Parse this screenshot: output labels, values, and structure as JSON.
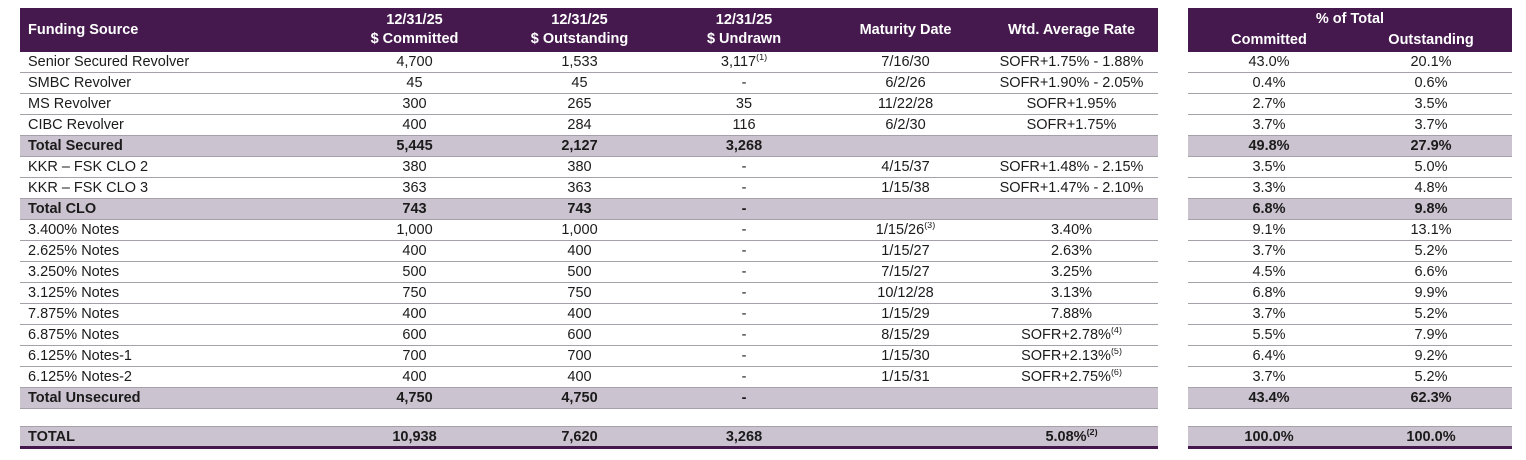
{
  "colors": {
    "header_bg": "#45194E",
    "header_text": "#FFFFFF",
    "band_bg": "#CBC3CF",
    "row_border": "#A6A1A8",
    "total_border": "#45194E",
    "text": "#1B1B1B"
  },
  "left_table": {
    "header": {
      "funding_source": "Funding Source",
      "committed_line1": "12/31/25",
      "committed_line2": "$ Committed",
      "outstanding_line1": "12/31/25",
      "outstanding_line2": "$ Outstanding",
      "undrawn_line1": "12/31/25",
      "undrawn_line2": "$ Undrawn",
      "maturity": "Maturity Date",
      "rate": "Wtd. Average Rate"
    }
  },
  "right_table": {
    "header": {
      "title": "% of Total",
      "committed": "Committed",
      "outstanding": "Outstanding"
    }
  },
  "rows": [
    {
      "type": "normal",
      "source": "Senior Secured Revolver",
      "committed": "4,700",
      "outstanding": "1,533",
      "undrawn": "3,117",
      "undrawn_sup": "(1)",
      "maturity": "7/16/30",
      "rate": "SOFR+1.75% - 1.88%",
      "pct_committed": "43.0%",
      "pct_outstanding": "20.1%"
    },
    {
      "type": "normal",
      "source": "SMBC Revolver",
      "committed": "45",
      "outstanding": "45",
      "undrawn": "-",
      "maturity": "6/2/26",
      "rate": "SOFR+1.90% - 2.05%",
      "pct_committed": "0.4%",
      "pct_outstanding": "0.6%"
    },
    {
      "type": "normal",
      "source": "MS Revolver",
      "committed": "300",
      "outstanding": "265",
      "undrawn": "35",
      "maturity": "11/22/28",
      "rate": "SOFR+1.95%",
      "pct_committed": "2.7%",
      "pct_outstanding": "3.5%"
    },
    {
      "type": "normal",
      "source": "CIBC Revolver",
      "committed": "400",
      "outstanding": "284",
      "undrawn": "116",
      "maturity": "6/2/30",
      "rate": "SOFR+1.75%",
      "pct_committed": "3.7%",
      "pct_outstanding": "3.7%"
    },
    {
      "type": "subtotal",
      "source": "Total Secured",
      "committed": "5,445",
      "outstanding": "2,127",
      "undrawn": "3,268",
      "maturity": "",
      "rate": "",
      "pct_committed": "49.8%",
      "pct_outstanding": "27.9%"
    },
    {
      "type": "normal",
      "source": "KKR – FSK CLO 2",
      "committed": "380",
      "outstanding": "380",
      "undrawn": "-",
      "maturity": "4/15/37",
      "rate": "SOFR+1.48% - 2.15%",
      "pct_committed": "3.5%",
      "pct_outstanding": "5.0%"
    },
    {
      "type": "normal",
      "source": "KKR – FSK CLO 3",
      "committed": "363",
      "outstanding": "363",
      "undrawn": "-",
      "maturity": "1/15/38",
      "rate": "SOFR+1.47% - 2.10%",
      "pct_committed": "3.3%",
      "pct_outstanding": "4.8%"
    },
    {
      "type": "subtotal",
      "source": "Total CLO",
      "committed": "743",
      "outstanding": "743",
      "undrawn": "-",
      "maturity": "",
      "rate": "",
      "pct_committed": "6.8%",
      "pct_outstanding": "9.8%"
    },
    {
      "type": "normal",
      "source": "3.400% Notes",
      "committed": "1,000",
      "outstanding": "1,000",
      "undrawn": "-",
      "maturity": "1/15/26",
      "maturity_sup": "(3)",
      "rate": "3.40%",
      "pct_committed": "9.1%",
      "pct_outstanding": "13.1%"
    },
    {
      "type": "normal",
      "source": "2.625% Notes",
      "committed": "400",
      "outstanding": "400",
      "undrawn": "-",
      "maturity": "1/15/27",
      "rate": "2.63%",
      "pct_committed": "3.7%",
      "pct_outstanding": "5.2%"
    },
    {
      "type": "normal",
      "source": "3.250% Notes",
      "committed": "500",
      "outstanding": "500",
      "undrawn": "-",
      "maturity": "7/15/27",
      "rate": "3.25%",
      "pct_committed": "4.5%",
      "pct_outstanding": "6.6%"
    },
    {
      "type": "normal",
      "source": "3.125% Notes",
      "committed": "750",
      "outstanding": "750",
      "undrawn": "-",
      "maturity": "10/12/28",
      "rate": "3.13%",
      "pct_committed": "6.8%",
      "pct_outstanding": "9.9%"
    },
    {
      "type": "normal",
      "source": "7.875% Notes",
      "committed": "400",
      "outstanding": "400",
      "undrawn": "-",
      "maturity": "1/15/29",
      "rate": "7.88%",
      "pct_committed": "3.7%",
      "pct_outstanding": "5.2%"
    },
    {
      "type": "normal",
      "source": "6.875% Notes",
      "committed": "600",
      "outstanding": "600",
      "undrawn": "-",
      "maturity": "8/15/29",
      "rate": "SOFR+2.78%",
      "rate_sup": "(4)",
      "pct_committed": "5.5%",
      "pct_outstanding": "7.9%"
    },
    {
      "type": "normal",
      "source": "6.125% Notes-1",
      "committed": "700",
      "outstanding": "700",
      "undrawn": "-",
      "maturity": "1/15/30",
      "rate": "SOFR+2.13%",
      "rate_sup": "(5)",
      "pct_committed": "6.4%",
      "pct_outstanding": "9.2%"
    },
    {
      "type": "normal",
      "source": "6.125% Notes-2",
      "committed": "400",
      "outstanding": "400",
      "undrawn": "-",
      "maturity": "1/15/31",
      "rate": "SOFR+2.75%",
      "rate_sup": "(6)",
      "pct_committed": "3.7%",
      "pct_outstanding": "5.2%"
    },
    {
      "type": "subtotal",
      "source": "Total Unsecured",
      "committed": "4,750",
      "outstanding": "4,750",
      "undrawn": "-",
      "maturity": "",
      "rate": "",
      "pct_committed": "43.4%",
      "pct_outstanding": "62.3%"
    },
    {
      "type": "gap"
    },
    {
      "type": "total",
      "source": "TOTAL",
      "committed": "10,938",
      "outstanding": "7,620",
      "undrawn": "3,268",
      "maturity": "",
      "rate": "5.08%",
      "rate_sup": "(2)",
      "pct_committed": "100.0%",
      "pct_outstanding": "100.0%"
    }
  ]
}
